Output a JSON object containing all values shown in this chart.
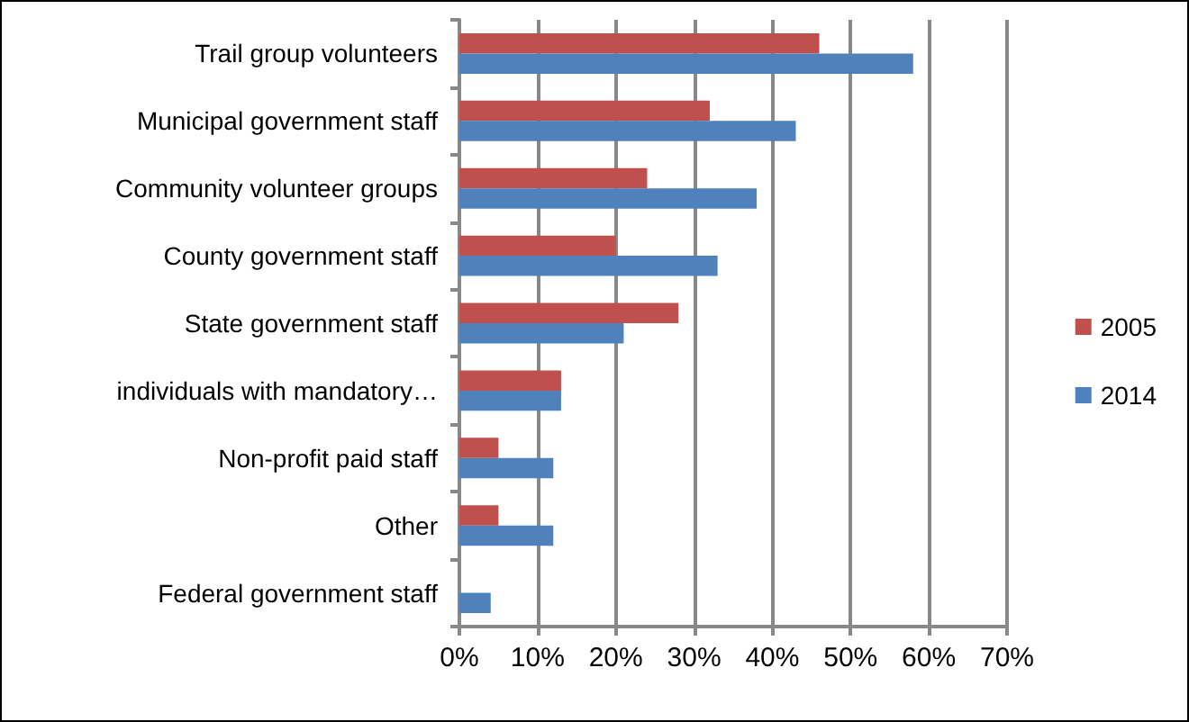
{
  "chart_data": {
    "type": "bar",
    "orientation": "horizontal",
    "categories": [
      "Trail group volunteers",
      "Municipal government staff",
      "Community volunteer groups",
      "County government staff",
      "State government staff",
      "individuals with mandatory…",
      "Non-profit paid staff",
      "Other",
      "Federal government staff"
    ],
    "series": [
      {
        "name": "2005",
        "color": "#c0504d",
        "values": [
          46,
          32,
          24,
          20,
          28,
          13,
          5,
          5,
          0
        ]
      },
      {
        "name": "2014",
        "color": "#4f81bd",
        "values": [
          58,
          43,
          38,
          33,
          21,
          13,
          12,
          12,
          4
        ]
      }
    ],
    "xlim": [
      0,
      70
    ],
    "xticks": [
      {
        "value": 0,
        "label": "0%"
      },
      {
        "value": 10,
        "label": "10%"
      },
      {
        "value": 20,
        "label": "20%"
      },
      {
        "value": 30,
        "label": "30%"
      },
      {
        "value": 40,
        "label": "40%"
      },
      {
        "value": 50,
        "label": "50%"
      },
      {
        "value": 60,
        "label": "60%"
      },
      {
        "value": 70,
        "label": "70%"
      }
    ],
    "grid": "x",
    "legend": "right"
  }
}
